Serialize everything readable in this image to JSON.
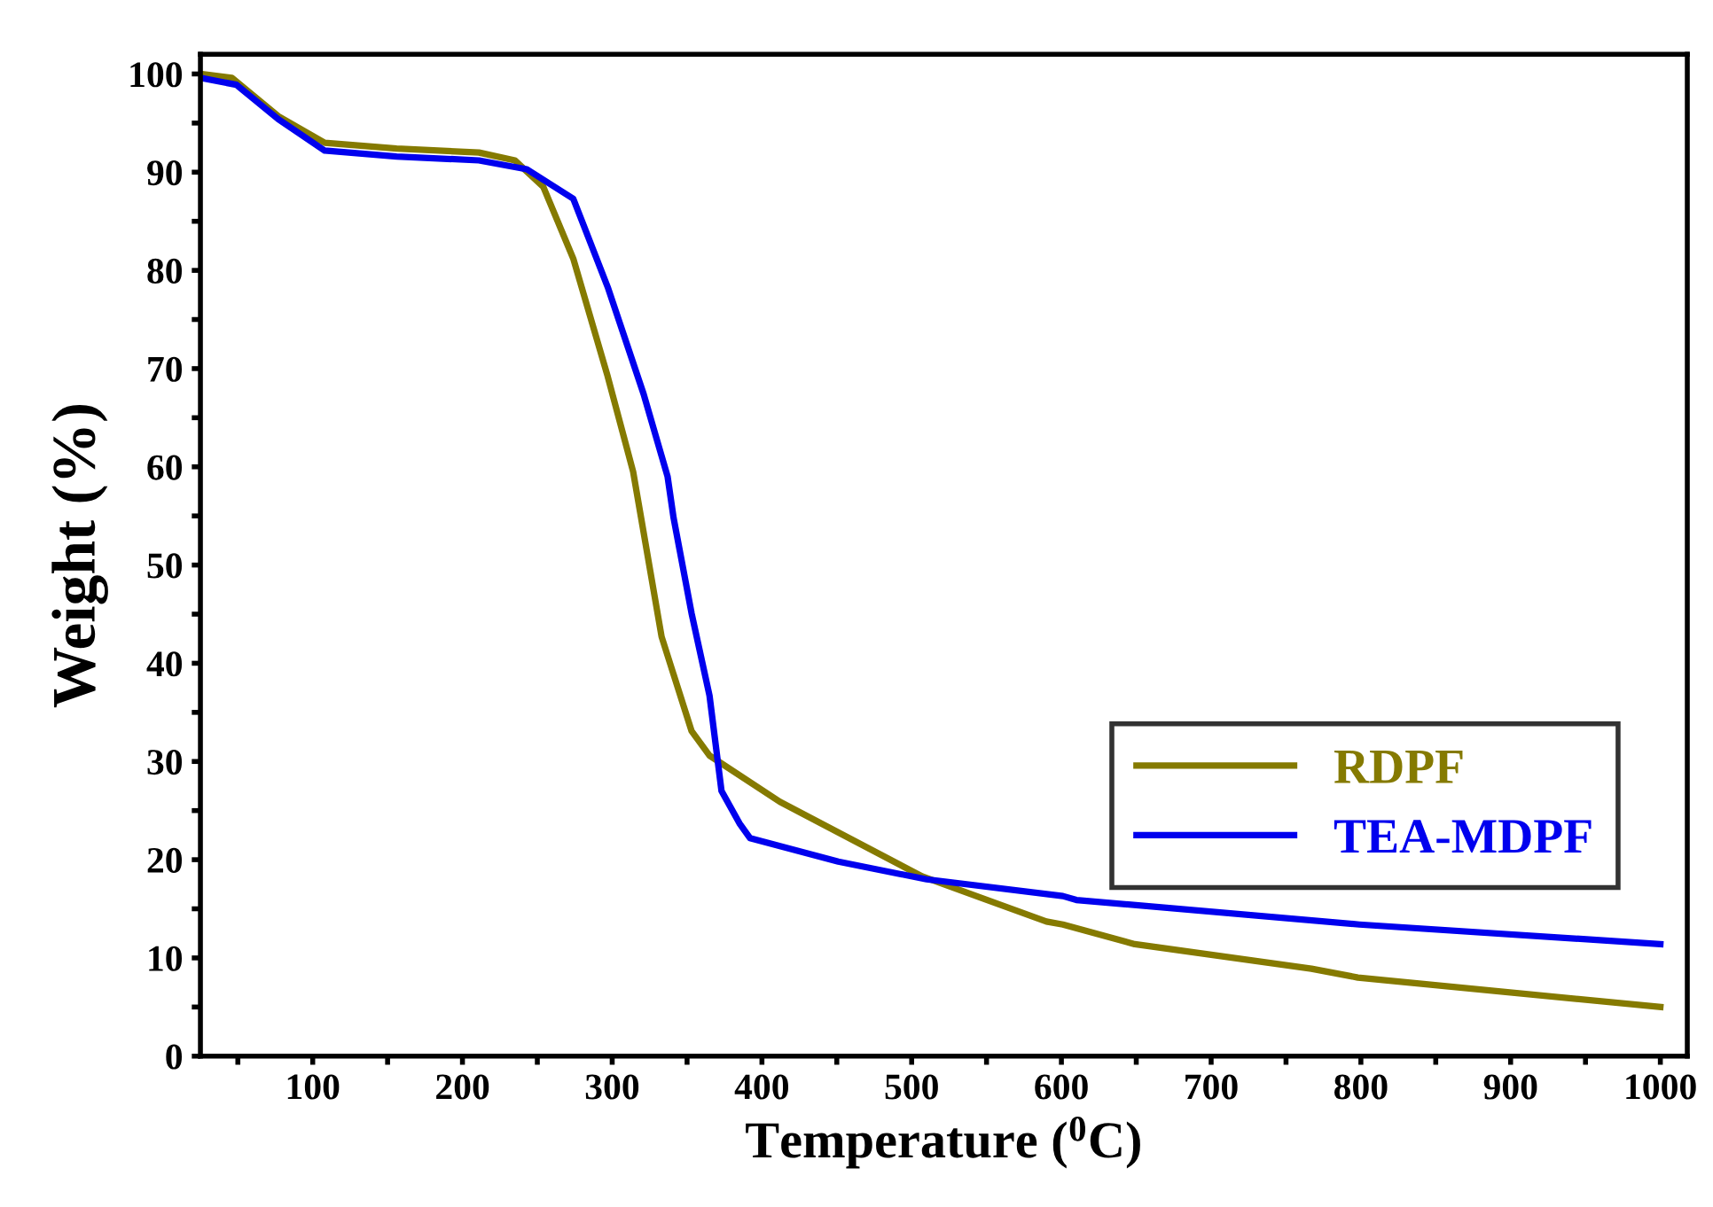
{
  "chart_data": {
    "type": "line",
    "xlabel": "Temperature ($^{0}$C)",
    "ylabel": "Weight (%)",
    "xlim": [
      25,
      1018
    ],
    "ylim": [
      0,
      102
    ],
    "xticks": [
      {
        "value": 50,
        "label": null
      },
      100,
      {
        "value": 150,
        "label": null
      },
      200,
      {
        "value": 250,
        "label": null
      },
      300,
      {
        "value": 350,
        "label": null
      },
      400,
      {
        "value": 450,
        "label": null
      },
      500,
      {
        "value": 550,
        "label": null
      },
      600,
      {
        "value": 650,
        "label": null
      },
      700,
      {
        "value": 750,
        "label": null
      },
      800,
      {
        "value": 850,
        "label": null
      },
      900,
      {
        "value": 950,
        "label": null
      },
      1000
    ],
    "yticks": [
      0,
      {
        "value": 5,
        "label": null
      },
      10,
      {
        "value": 15,
        "label": null
      },
      20,
      {
        "value": 25,
        "label": null
      },
      30,
      {
        "value": 35,
        "label": null
      },
      40,
      {
        "value": 45,
        "label": null
      },
      50,
      {
        "value": 55,
        "label": null
      },
      60,
      {
        "value": 65,
        "label": null
      },
      70,
      {
        "value": 75,
        "label": null
      },
      80,
      {
        "value": 85,
        "label": null
      },
      90,
      {
        "value": 95,
        "label": null
      },
      100
    ],
    "grid": false,
    "legend": "right",
    "marker": "none",
    "line_style": "solid",
    "series": [
      {
        "name": "RDPF",
        "color": "#857a00",
        "x": [
          25,
          46,
          77,
          108,
          156,
          211,
          235,
          254,
          274,
          297,
          314,
          333,
          353,
          365,
          412,
          507,
          590,
          601,
          649,
          767,
          798,
          1000
        ],
        "values": [
          100,
          99.6,
          95.7,
          93.0,
          92.4,
          92.0,
          91.2,
          88.5,
          81.2,
          69.2,
          59.5,
          42.7,
          33.1,
          30.6,
          25.9,
          18.3,
          13.7,
          13.4,
          11.4,
          8.9,
          8.0,
          5.0
        ]
      },
      {
        "name": "TEA-MDPF",
        "color": "#0000ee",
        "x": [
          25,
          49,
          77,
          108,
          156,
          211,
          243,
          274,
          297,
          321,
          337,
          341,
          353,
          365,
          373,
          385,
          392,
          451,
          510,
          601,
          610,
          799,
          1000
        ],
        "values": [
          99.6,
          98.9,
          95.4,
          92.2,
          91.6,
          91.2,
          90.3,
          87.3,
          78.3,
          67.4,
          59.0,
          54.8,
          45.1,
          36.7,
          27.0,
          23.7,
          22.2,
          19.8,
          18.0,
          16.3,
          15.9,
          13.4,
          11.4
        ]
      }
    ]
  }
}
